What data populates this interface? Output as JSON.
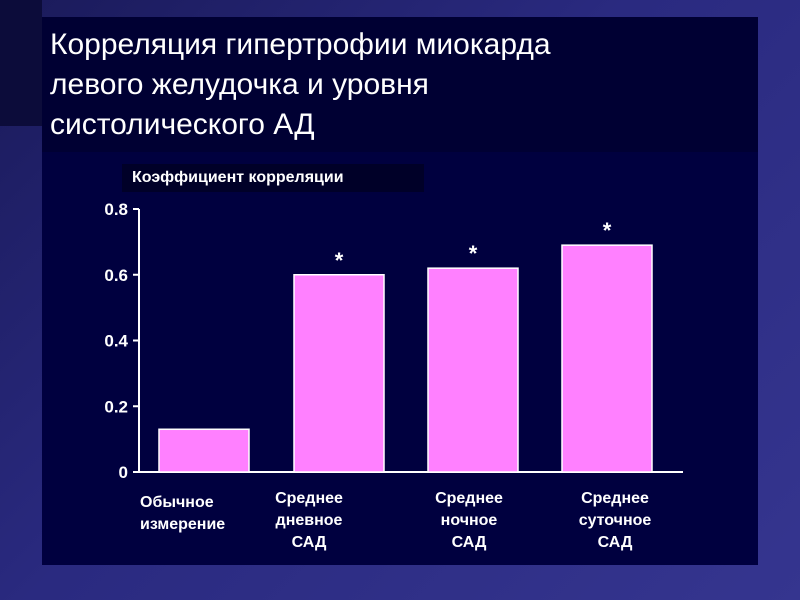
{
  "slide": {
    "title": "Корреляция гипертрофии миокарда\nлевого желудочка и уровня\nсистолического  АД"
  },
  "chart_data": {
    "type": "bar",
    "title": "Корреляция гипертрофии миокарда левого желудочка и уровня систолического  АД",
    "ylabel": "Коэффициент корреляции",
    "xlabel": "",
    "categories": [
      "Обычное\nизмерение",
      "Среднее\nдневное\nСАД",
      "Среднее\nночное\nСАД",
      "Среднее\nсуточное\nСАД"
    ],
    "values": [
      0.13,
      0.6,
      0.62,
      0.69
    ],
    "significance": [
      "",
      "*",
      "*",
      "*"
    ],
    "yticks": [
      "0",
      "0.2",
      "0.4",
      "0.6",
      "0.8"
    ],
    "ylim": [
      0,
      0.8
    ],
    "grid": false,
    "colors": {
      "bar": "#ff80ff",
      "bar_border": "#ffffff",
      "axis": "#ffffff",
      "background": "#00003f"
    }
  }
}
